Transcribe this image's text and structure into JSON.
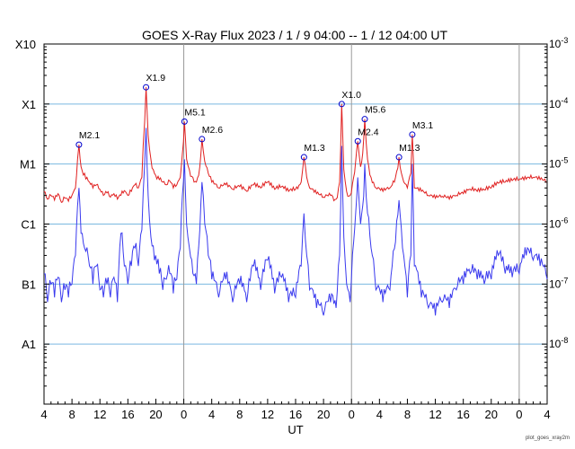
{
  "chart_data": {
    "type": "line",
    "title": "GOES X-Ray Flux   2023 /  1 /  9   04:00 --  1 / 12   04:00   UT",
    "xlabel": "UT",
    "ylabel": "",
    "y_scale": "log",
    "x_unit": "hours since 2023-01-09 04:00 UT",
    "xlim": [
      0,
      72
    ],
    "ylim": [
      1e-09,
      0.001
    ],
    "x_tick_labels": [
      "4",
      "8",
      "12",
      "16",
      "20",
      "0",
      "4",
      "8",
      "12",
      "16",
      "20",
      "0",
      "4",
      "8",
      "12",
      "16",
      "20",
      "0",
      "4"
    ],
    "left_axis_labels": [
      {
        "label": "A1",
        "value": 1e-08
      },
      {
        "label": "B1",
        "value": 1e-07
      },
      {
        "label": "C1",
        "value": 1e-06
      },
      {
        "label": "M1",
        "value": 1e-05
      },
      {
        "label": "X1",
        "value": 0.0001
      },
      {
        "label": "X10",
        "value": 0.001
      }
    ],
    "right_axis_labels": [
      {
        "label": "10^-8",
        "value": 1e-08
      },
      {
        "label": "10^-7",
        "value": 1e-07
      },
      {
        "label": "10^-6",
        "value": 1e-06
      },
      {
        "label": "10^-5",
        "value": 1e-05
      },
      {
        "label": "10^-4",
        "value": 0.0001
      },
      {
        "label": "10^-3",
        "value": 0.001
      }
    ],
    "grid": "horizontal at each decade, vertical day boundaries",
    "day_boundaries_x": [
      20,
      44,
      68
    ],
    "colors": {
      "long_channel": "#e02020",
      "short_channel": "#3a3aee",
      "grid": "#7ab8e0",
      "day_line": "#999999",
      "marker": "#0000cc"
    },
    "flares": [
      {
        "label": "M2.1",
        "x": 5.0,
        "y": 2.1e-05
      },
      {
        "label": "X1.9",
        "x": 14.6,
        "y": 0.00019
      },
      {
        "label": "M5.1",
        "x": 20.1,
        "y": 5.1e-05
      },
      {
        "label": "M2.6",
        "x": 22.6,
        "y": 2.6e-05
      },
      {
        "label": "M1.3",
        "x": 37.2,
        "y": 1.3e-05
      },
      {
        "label": "X1.0",
        "x": 42.6,
        "y": 0.0001
      },
      {
        "label": "M2.4",
        "x": 44.9,
        "y": 2.4e-05
      },
      {
        "label": "M5.6",
        "x": 45.9,
        "y": 5.6e-05
      },
      {
        "label": "M1.3",
        "x": 50.8,
        "y": 1.3e-05
      },
      {
        "label": "M3.1",
        "x": 52.7,
        "y": 3.1e-05
      }
    ],
    "series": [
      {
        "channel": "long",
        "points": [
          [
            0,
            3.5e-06
          ],
          [
            0.5,
            2.6e-06
          ],
          [
            1,
            3e-06
          ],
          [
            1.5,
            2.5e-06
          ],
          [
            2,
            3.2e-06
          ],
          [
            2.5,
            2.3e-06
          ],
          [
            3,
            2.7e-06
          ],
          [
            3.5,
            2.4e-06
          ],
          [
            4,
            3e-06
          ],
          [
            4.5,
            4e-06
          ],
          [
            4.8,
            1.2e-05
          ],
          [
            5,
            2.1e-05
          ],
          [
            5.3,
            9e-06
          ],
          [
            5.8,
            7e-06
          ],
          [
            6.5,
            5e-06
          ],
          [
            7,
            4e-06
          ],
          [
            7.5,
            4.5e-06
          ],
          [
            8,
            3.8e-06
          ],
          [
            8.5,
            3e-06
          ],
          [
            9,
            3.3e-06
          ],
          [
            9.5,
            2.8e-06
          ],
          [
            10,
            3.2e-06
          ],
          [
            10.5,
            2.6e-06
          ],
          [
            11,
            3e-06
          ],
          [
            11.5,
            3.6e-06
          ],
          [
            12,
            3e-06
          ],
          [
            12.5,
            3.5e-06
          ],
          [
            13,
            4.5e-06
          ],
          [
            13.5,
            4e-06
          ],
          [
            14,
            6e-06
          ],
          [
            14.4,
            5e-05
          ],
          [
            14.6,
            0.00019
          ],
          [
            14.9,
            3e-05
          ],
          [
            15.3,
            1.2e-05
          ],
          [
            15.8,
            7e-06
          ],
          [
            16.5,
            5.5e-06
          ],
          [
            17,
            5e-06
          ],
          [
            17.5,
            4.5e-06
          ],
          [
            18,
            5.2e-06
          ],
          [
            18.5,
            4e-06
          ],
          [
            19,
            4.5e-06
          ],
          [
            19.5,
            6e-06
          ],
          [
            19.8,
            1.5e-05
          ],
          [
            20.1,
            5.1e-05
          ],
          [
            20.4,
            1.2e-05
          ],
          [
            20.8,
            8e-06
          ],
          [
            21.3,
            6e-06
          ],
          [
            21.8,
            5e-06
          ],
          [
            22.3,
            9e-06
          ],
          [
            22.6,
            2.6e-05
          ],
          [
            23,
            1.1e-05
          ],
          [
            23.5,
            7e-06
          ],
          [
            24,
            5e-06
          ],
          [
            25,
            4e-06
          ],
          [
            26,
            4.5e-06
          ],
          [
            27,
            3.8e-06
          ],
          [
            28,
            4.2e-06
          ],
          [
            29,
            3.5e-06
          ],
          [
            30,
            4.5e-06
          ],
          [
            31,
            4e-06
          ],
          [
            32,
            5e-06
          ],
          [
            33,
            3.8e-06
          ],
          [
            34,
            4.2e-06
          ],
          [
            35,
            3.5e-06
          ],
          [
            36,
            3.8e-06
          ],
          [
            36.8,
            5e-06
          ],
          [
            37.2,
            1.3e-05
          ],
          [
            37.6,
            6e-06
          ],
          [
            38,
            4e-06
          ],
          [
            39,
            3.2e-06
          ],
          [
            40,
            2.8e-06
          ],
          [
            41,
            3e-06
          ],
          [
            41.8,
            2.6e-06
          ],
          [
            42.3,
            5e-06
          ],
          [
            42.6,
            0.0001
          ],
          [
            42.9,
            8e-06
          ],
          [
            43.3,
            3.5e-06
          ],
          [
            43.8,
            3e-06
          ],
          [
            44.3,
            6e-06
          ],
          [
            44.9,
            2.4e-05
          ],
          [
            45.3,
            9e-06
          ],
          [
            45.6,
            1.5e-05
          ],
          [
            45.9,
            5.6e-05
          ],
          [
            46.3,
            1.2e-05
          ],
          [
            46.8,
            6e-06
          ],
          [
            47.5,
            4e-06
          ],
          [
            48.5,
            3.5e-06
          ],
          [
            49.5,
            4e-06
          ],
          [
            50.3,
            6e-06
          ],
          [
            50.8,
            1.3e-05
          ],
          [
            51.3,
            6e-06
          ],
          [
            52,
            4e-06
          ],
          [
            52.5,
            7e-06
          ],
          [
            52.7,
            3.1e-05
          ],
          [
            53,
            4e-06
          ],
          [
            54,
            3.5e-06
          ],
          [
            55,
            3e-06
          ],
          [
            56,
            2.7e-06
          ],
          [
            57,
            2.9e-06
          ],
          [
            58,
            2.6e-06
          ],
          [
            59,
            3e-06
          ],
          [
            60,
            3.2e-06
          ],
          [
            61,
            3.8e-06
          ],
          [
            62,
            3.5e-06
          ],
          [
            63,
            3.7e-06
          ],
          [
            64,
            4e-06
          ],
          [
            65,
            4.8e-06
          ],
          [
            66,
            5e-06
          ],
          [
            67,
            5.3e-06
          ],
          [
            68,
            5.5e-06
          ],
          [
            69,
            5.6e-06
          ],
          [
            70,
            6e-06
          ],
          [
            71,
            5.5e-06
          ],
          [
            72,
            5e-06
          ]
        ]
      },
      {
        "channel": "short",
        "points": [
          [
            0,
            1.5e-07
          ],
          [
            0.5,
            5e-08
          ],
          [
            1,
            1e-07
          ],
          [
            1.5,
            6e-08
          ],
          [
            2,
            1.3e-07
          ],
          [
            2.5,
            5e-08
          ],
          [
            3,
            8e-08
          ],
          [
            3.5,
            6e-08
          ],
          [
            4,
            1e-07
          ],
          [
            4.5,
            3e-07
          ],
          [
            4.8,
            2e-06
          ],
          [
            5,
            4e-06
          ],
          [
            5.3,
            7e-07
          ],
          [
            5.8,
            4e-07
          ],
          [
            6.5,
            2e-07
          ],
          [
            7,
            1e-07
          ],
          [
            7.5,
            2e-07
          ],
          [
            8,
            8e-08
          ],
          [
            8.5,
            6e-08
          ],
          [
            9,
            1e-07
          ],
          [
            9.5,
            6e-08
          ],
          [
            10,
            1.3e-07
          ],
          [
            10.5,
            5e-08
          ],
          [
            11,
            7e-07
          ],
          [
            11.5,
            2e-07
          ],
          [
            12,
            1e-07
          ],
          [
            12.5,
            2e-07
          ],
          [
            13,
            4e-07
          ],
          [
            13.5,
            2e-07
          ],
          [
            14,
            8e-07
          ],
          [
            14.4,
            1e-05
          ],
          [
            14.6,
            4e-05
          ],
          [
            14.9,
            3e-06
          ],
          [
            15.3,
            6e-07
          ],
          [
            15.8,
            2.5e-07
          ],
          [
            16.5,
            1.5e-07
          ],
          [
            17,
            8e-08
          ],
          [
            17.5,
            1.2e-07
          ],
          [
            18,
            1.5e-07
          ],
          [
            18.5,
            7e-08
          ],
          [
            19,
            1.2e-07
          ],
          [
            19.5,
            4e-07
          ],
          [
            19.8,
            3e-06
          ],
          [
            20.1,
            1.2e-05
          ],
          [
            20.4,
            1e-06
          ],
          [
            20.8,
            4e-07
          ],
          [
            21.3,
            1.5e-07
          ],
          [
            21.8,
            1e-07
          ],
          [
            22.3,
            8e-07
          ],
          [
            22.6,
            5e-06
          ],
          [
            23,
            1e-06
          ],
          [
            23.5,
            3e-07
          ],
          [
            24,
            1.2e-07
          ],
          [
            25,
            6e-08
          ],
          [
            26,
            1.2e-07
          ],
          [
            27,
            5e-08
          ],
          [
            28,
            1e-07
          ],
          [
            29,
            5e-08
          ],
          [
            30,
            2e-07
          ],
          [
            31,
            8e-08
          ],
          [
            32,
            2.5e-07
          ],
          [
            33,
            7e-08
          ],
          [
            34,
            1.3e-07
          ],
          [
            35,
            5e-08
          ],
          [
            36,
            6e-08
          ],
          [
            36.8,
            2e-07
          ],
          [
            37.2,
            1.5e-06
          ],
          [
            37.6,
            3e-07
          ],
          [
            38,
            8e-08
          ],
          [
            39,
            4e-08
          ],
          [
            40,
            3e-08
          ],
          [
            41,
            5e-08
          ],
          [
            41.8,
            4e-08
          ],
          [
            42.3,
            3e-07
          ],
          [
            42.6,
            2e-05
          ],
          [
            42.9,
            6e-07
          ],
          [
            43.3,
            1e-07
          ],
          [
            43.8,
            5e-08
          ],
          [
            44.3,
            5e-07
          ],
          [
            44.9,
            6e-06
          ],
          [
            45.3,
            1e-06
          ],
          [
            45.6,
            2e-06
          ],
          [
            45.9,
            1e-05
          ],
          [
            46.3,
            1.5e-06
          ],
          [
            46.8,
            4e-07
          ],
          [
            47.5,
            8e-08
          ],
          [
            48.5,
            5e-08
          ],
          [
            49.5,
            8e-08
          ],
          [
            50.3,
            5e-07
          ],
          [
            50.8,
            2.5e-06
          ],
          [
            51.3,
            4e-07
          ],
          [
            52,
            6e-08
          ],
          [
            52.5,
            3e-07
          ],
          [
            52.7,
            1e-05
          ],
          [
            53,
            2e-07
          ],
          [
            54,
            6e-08
          ],
          [
            55,
            4e-08
          ],
          [
            56,
            3e-08
          ],
          [
            57,
            5e-08
          ],
          [
            58,
            4e-08
          ],
          [
            59,
            8e-08
          ],
          [
            60,
            1e-07
          ],
          [
            61,
            1.5e-07
          ],
          [
            62,
            1.2e-07
          ],
          [
            63,
            1e-07
          ],
          [
            64,
            1.2e-07
          ],
          [
            65,
            3e-07
          ],
          [
            66,
            1.5e-07
          ],
          [
            67,
            1.3e-07
          ],
          [
            68,
            1.5e-07
          ],
          [
            69,
            3e-07
          ],
          [
            70,
            2.5e-07
          ],
          [
            71,
            2e-07
          ],
          [
            72,
            1.2e-07
          ]
        ]
      }
    ],
    "footer_credit": "plot_goes_xray2m"
  }
}
